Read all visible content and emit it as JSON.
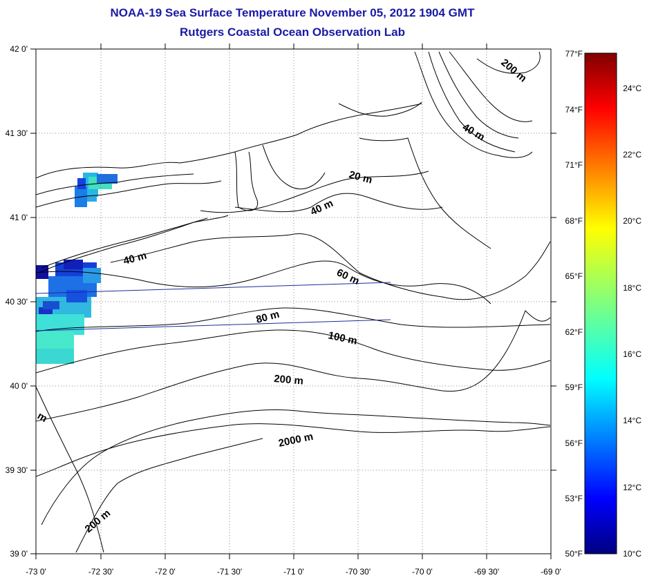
{
  "title": "NOAA-19 Sea Surface Temperature November 05, 2012 1904 GMT",
  "subtitle": "Rutgers Coastal Ocean Observation Lab",
  "lon_labels": [
    "-73 0'",
    "-72 30'",
    "-72 0'",
    "-71 30'",
    "-71 0'",
    "-70 30'",
    "-70 0'",
    "-69 30'",
    "-69 0'"
  ],
  "lat_labels": [
    "42 0'",
    "41 30'",
    "41 0'",
    "40 30'",
    "40 0'",
    "39 30'",
    "39 0'"
  ],
  "colorbar": {
    "fahrenheit_labels": [
      "77°F",
      "74°F",
      "71°F",
      "68°F",
      "65°F",
      "62°F",
      "59°F",
      "56°F",
      "53°F",
      "50°F"
    ],
    "celsius_labels": [
      "24°C",
      "22°C",
      "20°C",
      "18°C",
      "16°C",
      "14°C",
      "12°C",
      "10°C"
    ],
    "range_c": [
      10,
      25
    ]
  },
  "contour_labels": [
    "200 m",
    "40 m",
    "20 m",
    "40 m",
    "40 m",
    "60 m",
    "80 m",
    "100 m",
    "200 m",
    "2000 m",
    "200 m",
    "m"
  ],
  "colors": {
    "title": "#1a1aa6",
    "track_lines": "#1a2a9a"
  }
}
